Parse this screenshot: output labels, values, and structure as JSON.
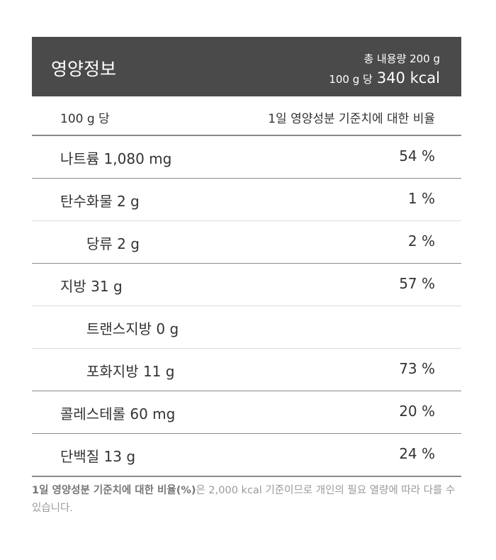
{
  "header": {
    "title": "영양정보",
    "total": "총 내용량 200 g",
    "per": "100 g 당",
    "calories": "340 kcal"
  },
  "subheader": {
    "left": "100 g 당",
    "right": "1일 영양성분 기준치에 대한 비율"
  },
  "rows": [
    {
      "label": "나트륨 1,080 mg",
      "percent": "54 %",
      "sub": false
    },
    {
      "label": "탄수화물 2 g",
      "percent": "1 %",
      "sub": false
    },
    {
      "label": "당류 2 g",
      "percent": "2 %",
      "sub": true
    },
    {
      "label": "지방 31 g",
      "percent": "57 %",
      "sub": false
    },
    {
      "label": "트랜스지방 0 g",
      "sub": true
    },
    {
      "label": "포화지방 11 g",
      "percent": "73 %",
      "sub": true
    },
    {
      "label": "콜레스테롤 60 mg",
      "percent": "20 %",
      "sub": false
    },
    {
      "label": "단백질 13 g",
      "percent": "24 %",
      "sub": false
    }
  ],
  "footnote": {
    "bold": "1일 영양성분 기준치에 대한 비율(%)",
    "text": "은 2,000 kcal 기준이므로 개인의 필요 열량에 따라 다를 수 있습니다."
  }
}
